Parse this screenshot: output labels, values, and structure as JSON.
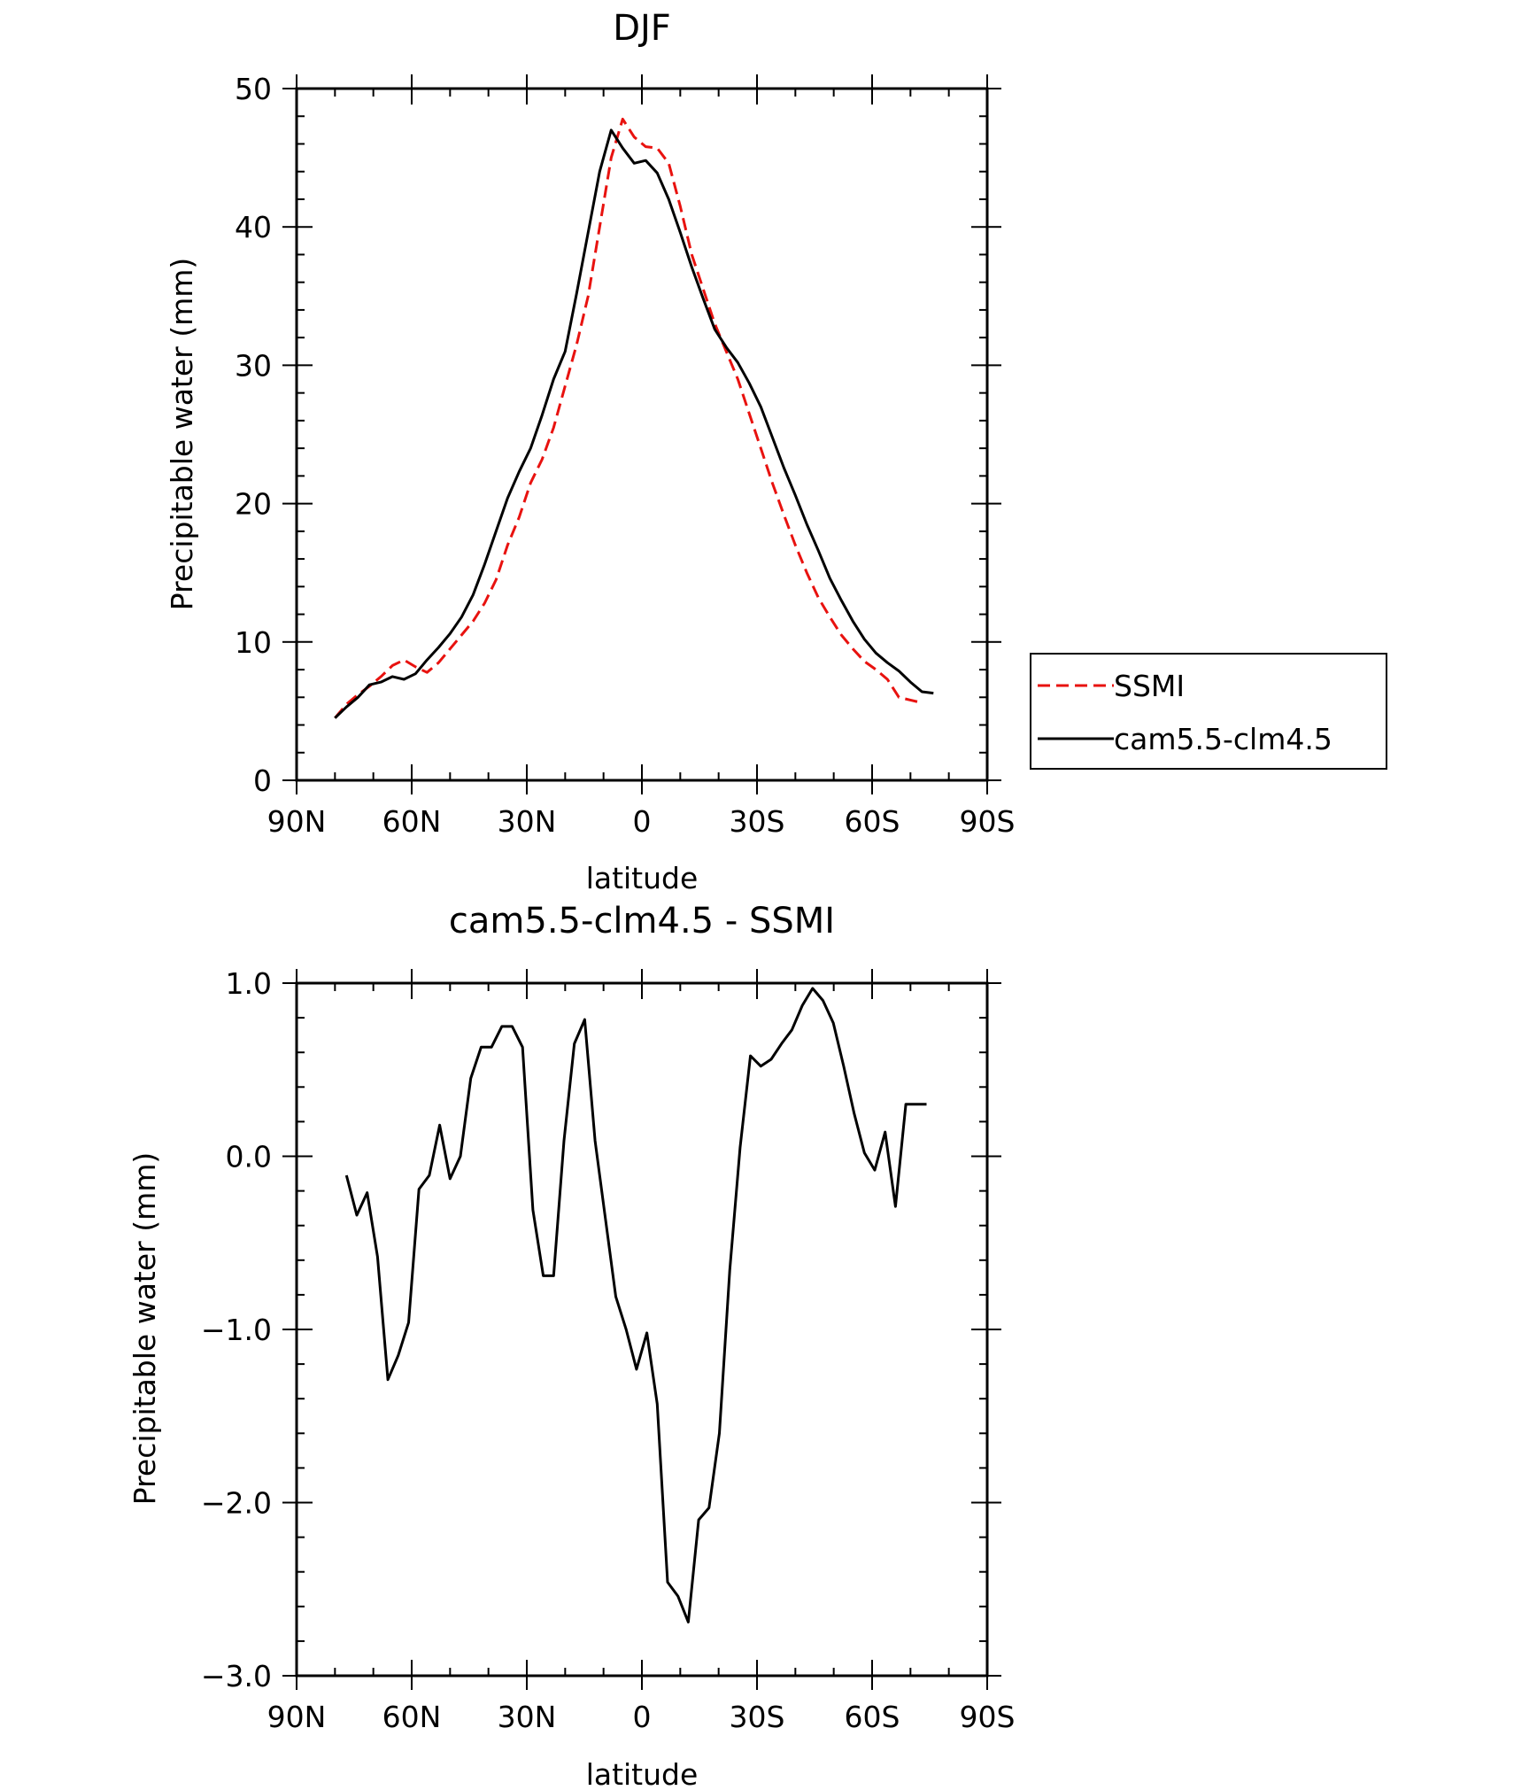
{
  "chart_data": [
    {
      "type": "line",
      "title": "DJF",
      "xlabel": "latitude",
      "ylabel": "Precipitable water (mm)",
      "xlim": [
        90,
        -90
      ],
      "ylim": [
        0,
        50
      ],
      "xticks": [
        90,
        60,
        30,
        0,
        -30,
        -60,
        -90
      ],
      "xtick_labels": [
        "90N",
        "60N",
        "30N",
        "0",
        "30S",
        "60S",
        "90S"
      ],
      "yticks": [
        0,
        10,
        20,
        30,
        40,
        50
      ],
      "ytick_labels": [
        "0",
        "10",
        "20",
        "30",
        "40",
        "50"
      ],
      "legend": "right",
      "series": [
        {
          "name": "SSMI",
          "color": "#e8120f",
          "dash": "dashed",
          "x": [
            80,
            77,
            74,
            71,
            68,
            65,
            62,
            59,
            56,
            53,
            50,
            47,
            44,
            41,
            38,
            35,
            32,
            29,
            26,
            23,
            20,
            17,
            14,
            11,
            8,
            5,
            2,
            -1,
            -4,
            -7,
            -10,
            -13,
            -16,
            -19,
            -22,
            -25,
            -28,
            -31,
            -34,
            -37,
            -40,
            -43,
            -46,
            -49,
            -52,
            -55,
            -58,
            -61,
            -64,
            -67,
            -70,
            -73
          ],
          "y": [
            4.5,
            5.5,
            6.2,
            6.8,
            7.5,
            8.3,
            8.7,
            8.2,
            7.8,
            8.5,
            9.5,
            10.5,
            11.5,
            12.8,
            14.5,
            17.0,
            19.0,
            21.5,
            23.2,
            25.5,
            28.5,
            31.5,
            35.0,
            40.0,
            45.0,
            47.8,
            46.5,
            45.8,
            45.7,
            44.6,
            41.5,
            38.0,
            35.5,
            33.0,
            31.0,
            29.0,
            26.5,
            24.0,
            21.5,
            19.2,
            17.0,
            15.0,
            13.2,
            11.8,
            10.5,
            9.5,
            8.6,
            8.0,
            7.3,
            6.0,
            5.8,
            5.6
          ]
        },
        {
          "name": "cam5.5-clm4.5",
          "color": "#000000",
          "dash": "solid",
          "x": [
            80,
            77,
            74,
            71,
            68,
            65,
            62,
            59,
            56,
            53,
            50,
            47,
            44,
            41,
            38,
            35,
            32,
            29,
            26,
            23,
            20,
            17,
            14,
            11,
            8,
            5,
            2,
            -1,
            -4,
            -7,
            -10,
            -13,
            -16,
            -19,
            -22,
            -25,
            -28,
            -31,
            -34,
            -37,
            -40,
            -43,
            -46,
            -49,
            -52,
            -55,
            -58,
            -61,
            -64,
            -67,
            -70,
            -73,
            -76
          ],
          "y": [
            4.5,
            5.3,
            6.0,
            6.9,
            7.1,
            7.5,
            7.3,
            7.7,
            8.7,
            9.6,
            10.6,
            11.8,
            13.4,
            15.6,
            18.0,
            20.4,
            22.3,
            24.0,
            26.4,
            29.0,
            31.0,
            35.2,
            39.6,
            44.0,
            47.0,
            45.7,
            44.6,
            44.8,
            43.9,
            42.0,
            39.6,
            37.1,
            34.8,
            32.6,
            31.3,
            30.2,
            28.7,
            27.0,
            24.8,
            22.6,
            20.6,
            18.5,
            16.6,
            14.6,
            13.0,
            11.5,
            10.2,
            9.2,
            8.5,
            7.9,
            7.1,
            6.4,
            6.3
          ]
        }
      ]
    },
    {
      "type": "line",
      "title": "cam5.5-clm4.5 - SSMI",
      "xlabel": "latitude",
      "ylabel": "Precipitable water (mm)",
      "xlim": [
        90,
        -90
      ],
      "ylim": [
        -3.0,
        1.0
      ],
      "xticks": [
        90,
        60,
        30,
        0,
        -30,
        -60,
        -90
      ],
      "xtick_labels": [
        "90N",
        "60N",
        "30N",
        "0",
        "30S",
        "60S",
        "90S"
      ],
      "yticks": [
        -3.0,
        -2.0,
        -1.0,
        0.0,
        1.0
      ],
      "ytick_labels": [
        "−3.0",
        "−2.0",
        "−1.0",
        "0.0",
        "1.0"
      ],
      "series": [
        {
          "color": "#000000",
          "dash": "solid",
          "x": [
            77,
            74.3,
            71.6,
            68.9,
            66.2,
            63.5,
            60.8,
            58.1,
            55.4,
            52.7,
            50.0,
            47.3,
            44.6,
            41.9,
            39.2,
            36.5,
            33.8,
            31.1,
            28.4,
            25.7,
            23.0,
            20.3,
            17.6,
            14.9,
            12.2,
            9.5,
            6.8,
            4.1,
            1.4,
            -1.3,
            -4.0,
            -6.7,
            -9.4,
            -12.1,
            -14.8,
            -17.5,
            -20.2,
            -22.9,
            -25.6,
            -28.3,
            -31.0,
            -33.7,
            -36.4,
            -39.1,
            -41.8,
            -44.5,
            -47.2,
            -49.9,
            -52.6,
            -55.3,
            -58.0,
            -60.7,
            -63.4,
            -66.1,
            -68.8,
            -71.5,
            -74.2
          ],
          "y": [
            -0.11,
            -0.34,
            -0.21,
            -0.58,
            -1.29,
            -1.15,
            -0.96,
            -0.19,
            -0.11,
            0.18,
            -0.13,
            0.0,
            0.45,
            0.63,
            0.63,
            0.75,
            0.75,
            0.63,
            -0.31,
            -0.69,
            -0.69,
            0.09,
            0.65,
            0.79,
            0.09,
            -0.36,
            -0.81,
            -1.0,
            -1.23,
            -1.02,
            -1.43,
            -2.46,
            -2.54,
            -2.69,
            -2.1,
            -2.03,
            -1.6,
            -0.66,
            0.05,
            0.58,
            0.52,
            0.56,
            0.65,
            0.73,
            0.87,
            0.97,
            0.9,
            0.77,
            0.52,
            0.25,
            0.02,
            -0.08,
            0.14,
            -0.29,
            0.3,
            0.3,
            0.3
          ]
        }
      ]
    }
  ]
}
